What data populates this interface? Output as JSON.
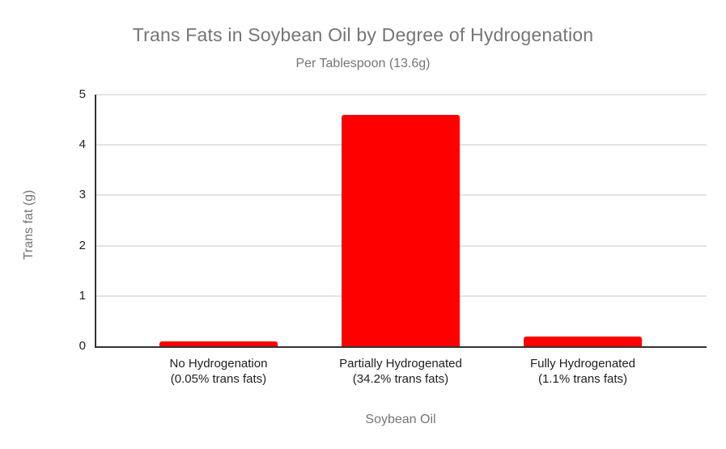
{
  "chart_data": {
    "type": "bar",
    "title": "Trans Fats in Soybean Oil by Degree of Hydrogenation",
    "subtitle": "Per Tablespoon (13.6g)",
    "xlabel": "Soybean Oil",
    "ylabel": "Trans fat (g)",
    "ylim": [
      0,
      5
    ],
    "yticks": [
      0,
      1,
      2,
      3,
      4,
      5
    ],
    "grid": true,
    "legend": "none",
    "bar_color": "#ff0000",
    "categories": [
      {
        "label": "No Hydrogenation",
        "sublabel": "(0.05% trans fats)"
      },
      {
        "label": "Partially Hydrogenated",
        "sublabel": "(34.2% trans fats)"
      },
      {
        "label": "Fully Hydrogenated",
        "sublabel": "(1.1% trans fats)"
      }
    ],
    "values": [
      0.1,
      4.6,
      0.2
    ]
  },
  "colors": {
    "bar": "#ff0000",
    "title_text": "#757575",
    "axis_text": "#212121",
    "axis_line": "#333333",
    "gridline": "#e3e3e3",
    "background": "#ffffff"
  }
}
